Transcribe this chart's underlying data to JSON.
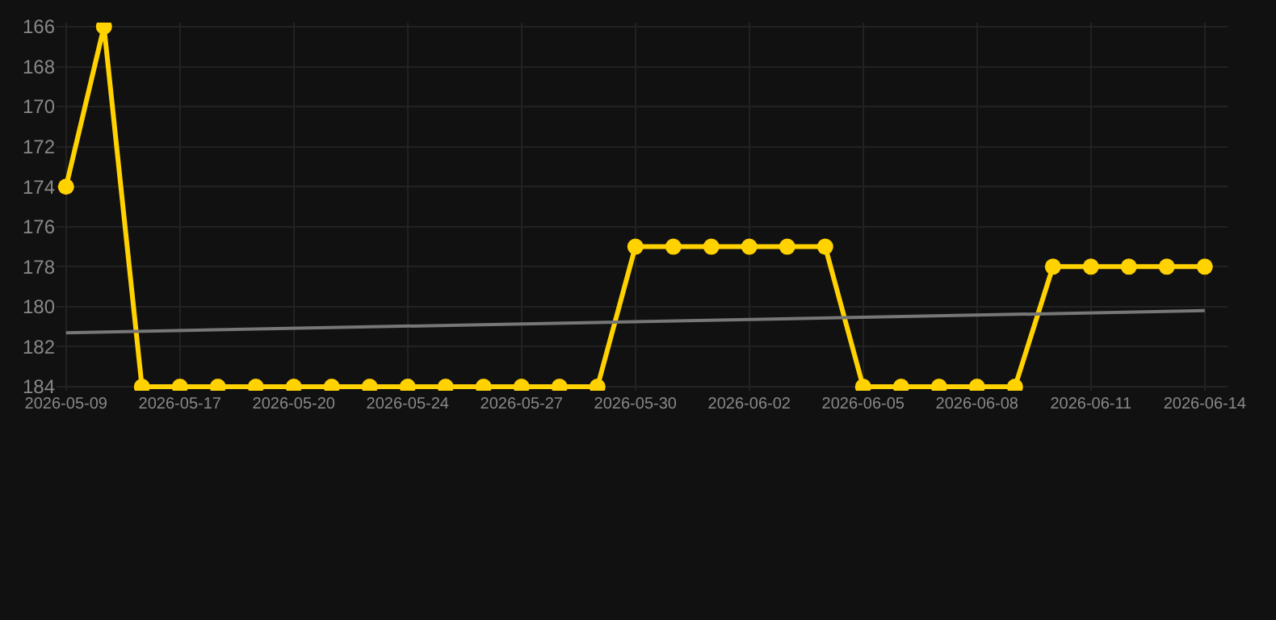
{
  "chart_data": {
    "type": "line",
    "categories": [
      "2026-05-09",
      null,
      null,
      "2026-05-17",
      null,
      null,
      "2026-05-20",
      null,
      null,
      "2026-05-24",
      null,
      null,
      "2026-05-27",
      null,
      null,
      "2026-05-30",
      null,
      null,
      "2026-06-02",
      null,
      null,
      "2026-06-05",
      null,
      null,
      "2026-06-08",
      null,
      null,
      "2026-06-11",
      null,
      null,
      "2026-06-14"
    ],
    "series": [
      {
        "color": "#ffd200",
        "values": [
          174,
          166,
          184,
          184,
          184,
          184,
          184,
          184,
          184,
          184,
          184,
          184,
          184,
          184,
          184,
          177,
          177,
          177,
          177,
          177,
          177,
          184,
          184,
          184,
          184,
          184,
          178,
          178,
          178,
          178,
          178
        ],
        "marker": "circle"
      },
      {
        "type": "line",
        "color": "#777777",
        "values": [
          181.3,
          null,
          null,
          null,
          null,
          null,
          null,
          null,
          null,
          null,
          null,
          null,
          null,
          null,
          null,
          null,
          null,
          null,
          null,
          null,
          null,
          null,
          null,
          null,
          null,
          null,
          null,
          null,
          null,
          null,
          180.2
        ],
        "marker": "none"
      }
    ],
    "ylim": [
      184.2,
      165.8
    ],
    "yticks": [
      166,
      168,
      170,
      172,
      174,
      176,
      178,
      180,
      182,
      184
    ],
    "grid": true,
    "line_style": "solid"
  }
}
